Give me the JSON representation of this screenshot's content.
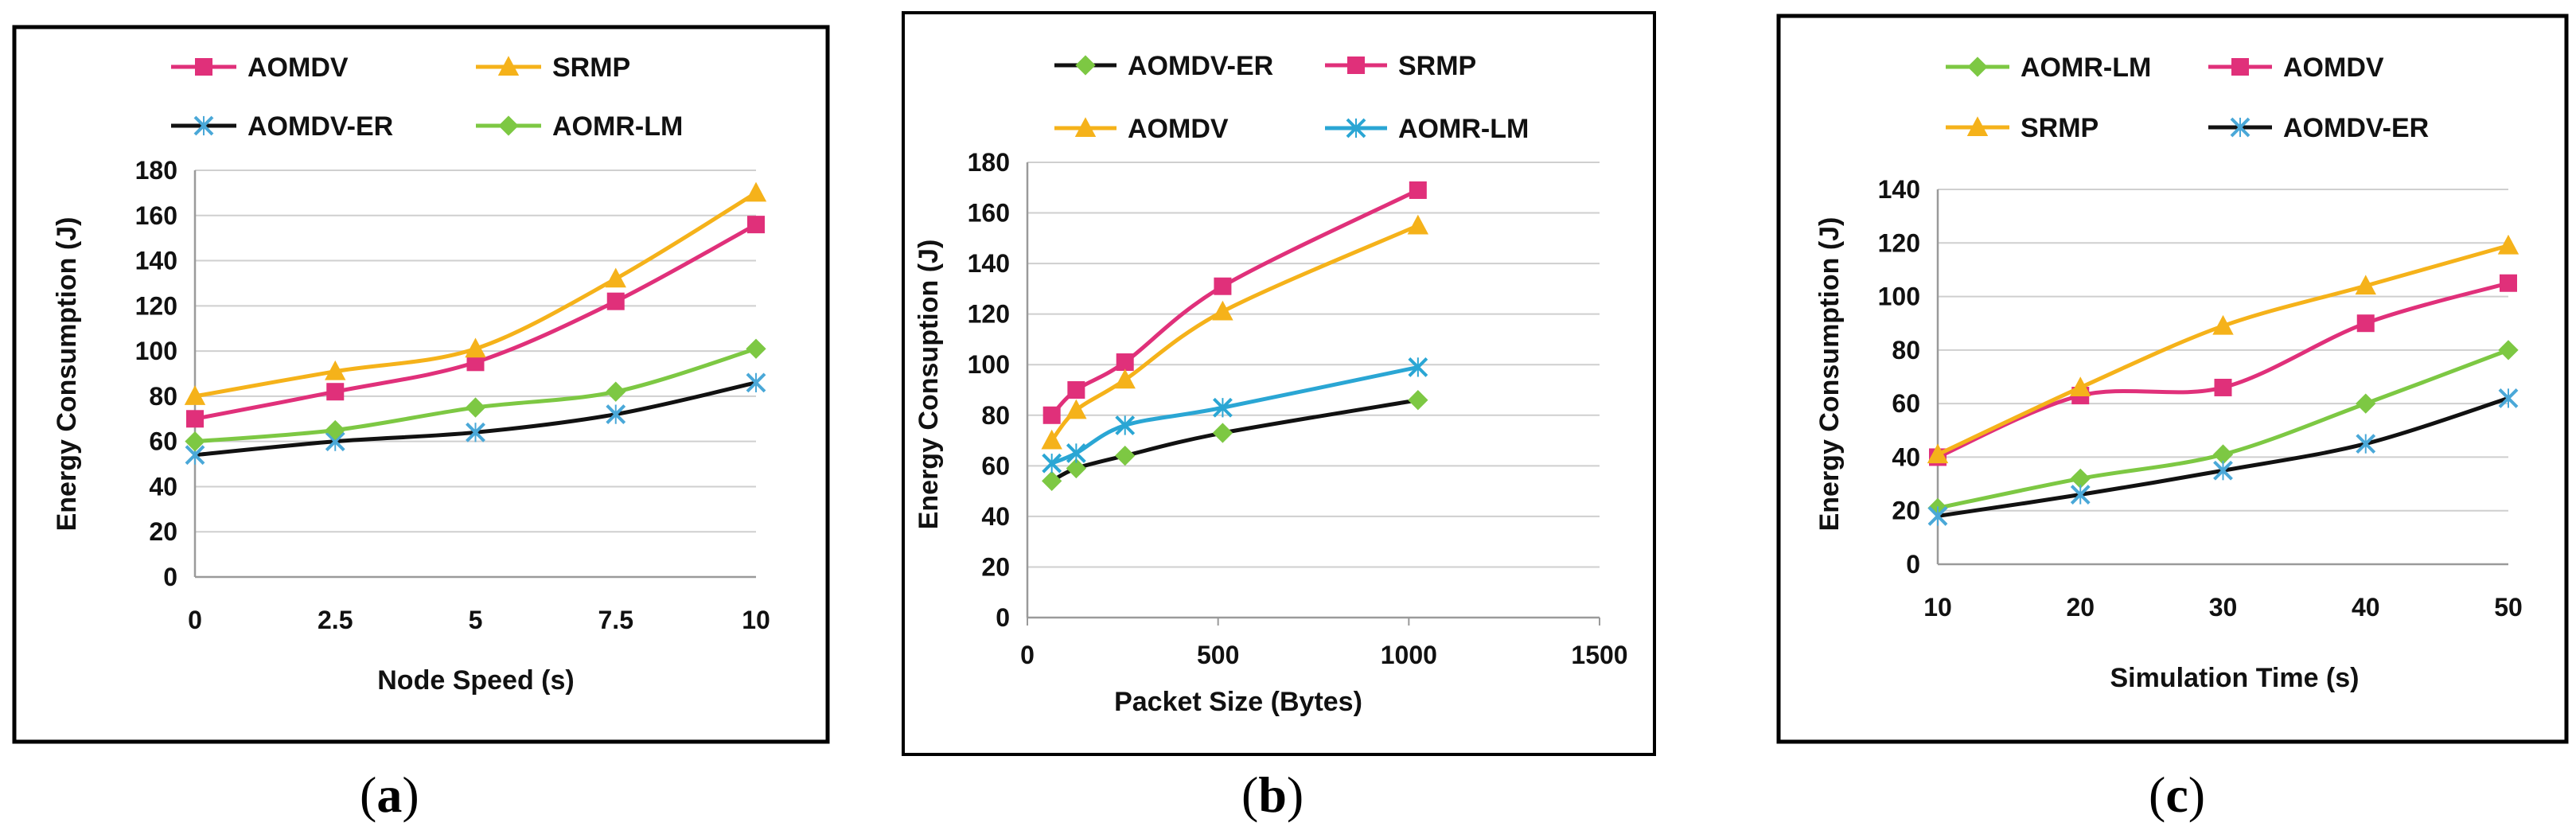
{
  "chart_data": [
    {
      "type": "line",
      "panel_caption": "(a)",
      "caption_letter": "a",
      "xlabel": "Node Speed (s)",
      "ylabel": "Energy Consumption (J)",
      "categories": [
        "0",
        "2.5",
        "5",
        "7.5",
        "10"
      ],
      "yticks": [
        0,
        20,
        40,
        60,
        80,
        100,
        120,
        140,
        160,
        180
      ],
      "ylim": [
        0,
        180
      ],
      "x_mode": "category",
      "series": [
        {
          "name": "AOMDV",
          "color": "#e0307a",
          "marker": "square",
          "values": [
            70,
            82,
            95,
            122,
            156
          ]
        },
        {
          "name": "SRMP",
          "color": "#f5b21a",
          "marker": "triangle",
          "values": [
            80,
            91,
            101,
            132,
            170
          ]
        },
        {
          "name": "AOMDV-ER",
          "color": "#111111",
          "marker": "cross",
          "marker_color": "#4aa8d8",
          "values": [
            54,
            60,
            64,
            72,
            86
          ]
        },
        {
          "name": "AOMR-LM",
          "color": "#7dc843",
          "marker": "diamond",
          "values": [
            60,
            65,
            75,
            82,
            101
          ]
        }
      ]
    },
    {
      "type": "line",
      "panel_caption": "(b)",
      "caption_letter": "b",
      "xlabel": "Packet Size (Bytes)",
      "ylabel": "Energy Consuption (J)",
      "xticks": [
        0,
        500,
        1000,
        1500
      ],
      "xlim": [
        0,
        1500
      ],
      "yticks": [
        0,
        20,
        40,
        60,
        80,
        100,
        120,
        140,
        160,
        180
      ],
      "ylim": [
        0,
        180
      ],
      "x_mode": "numeric",
      "series": [
        {
          "name": "AOMDV-ER",
          "color": "#111111",
          "marker": "diamond",
          "marker_color": "#7dc843",
          "x": [
            64,
            128,
            256,
            512,
            1024
          ],
          "values": [
            54,
            59,
            64,
            73,
            86
          ]
        },
        {
          "name": "SRMP",
          "color": "#e0307a",
          "marker": "square",
          "x": [
            64,
            128,
            256,
            512,
            1024
          ],
          "values": [
            80,
            90,
            101,
            131,
            169
          ]
        },
        {
          "name": "AOMDV",
          "color": "#f5b21a",
          "marker": "triangle",
          "x": [
            64,
            128,
            256,
            512,
            1024
          ],
          "values": [
            70,
            82,
            94,
            121,
            155
          ]
        },
        {
          "name": "AOMR-LM",
          "color": "#2aa6d4",
          "marker": "cross",
          "x": [
            64,
            128,
            256,
            512,
            1024
          ],
          "values": [
            61,
            65,
            76,
            83,
            99
          ]
        }
      ]
    },
    {
      "type": "line",
      "panel_caption": "(c)",
      "caption_letter": "c",
      "xlabel": "Simulation Time (s)",
      "ylabel": "Energy Consumption (J)",
      "categories": [
        "10",
        "20",
        "30",
        "40",
        "50"
      ],
      "yticks": [
        0,
        20,
        40,
        60,
        80,
        100,
        120,
        140
      ],
      "ylim": [
        0,
        140
      ],
      "x_mode": "category",
      "series": [
        {
          "name": "AOMR-LM",
          "color": "#7dc843",
          "marker": "diamond",
          "values": [
            21,
            32,
            41,
            60,
            80
          ]
        },
        {
          "name": "AOMDV",
          "color": "#e0307a",
          "marker": "square",
          "values": [
            40,
            63,
            66,
            90,
            105
          ]
        },
        {
          "name": "SRMP",
          "color": "#f5b21a",
          "marker": "triangle",
          "values": [
            41,
            66,
            89,
            104,
            119
          ]
        },
        {
          "name": "AOMDV-ER",
          "color": "#111111",
          "marker": "cross",
          "marker_color": "#4aa8d8",
          "values": [
            18,
            26,
            35,
            45,
            62
          ]
        }
      ]
    }
  ]
}
